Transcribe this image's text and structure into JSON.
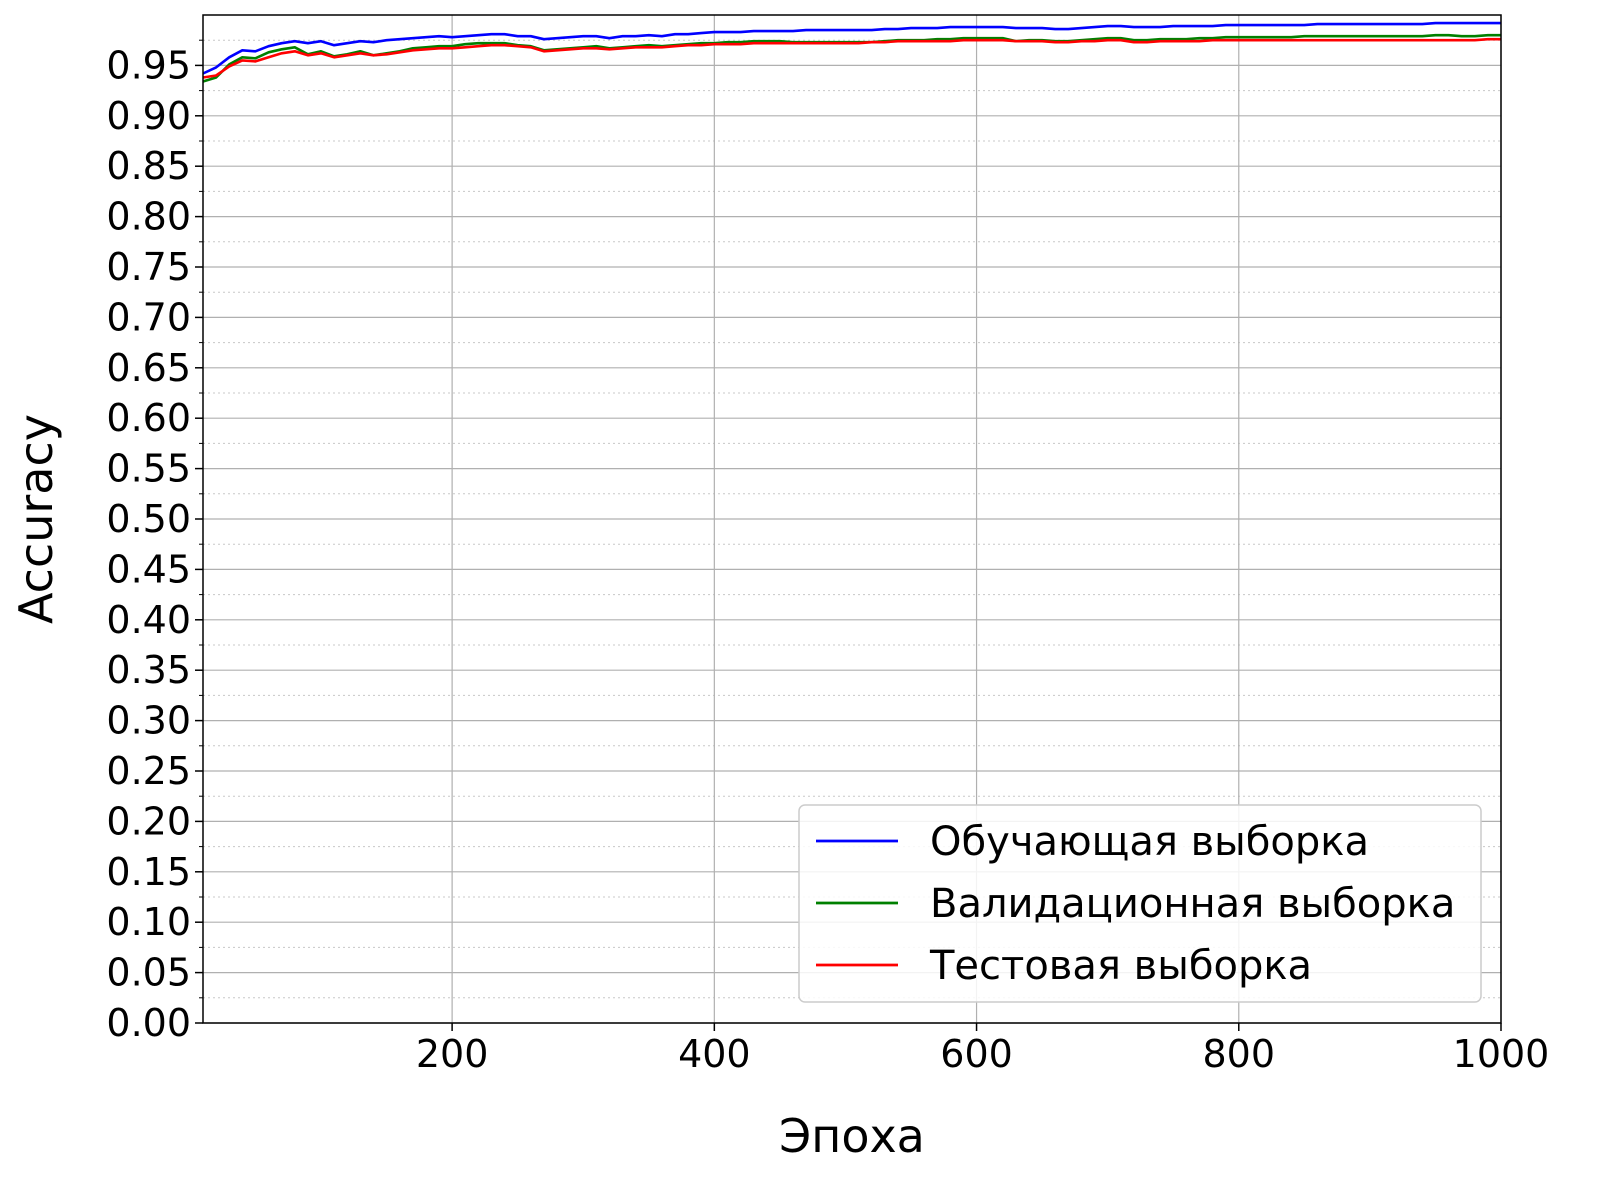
{
  "chart_data": {
    "type": "line",
    "title": "",
    "xlabel": "Эпоха",
    "ylabel": "Accuracy",
    "xlim": [
      10,
      1000
    ],
    "ylim": [
      0.0,
      1.0
    ],
    "x_ticks": [
      200,
      400,
      600,
      800,
      1000
    ],
    "y_ticks": [
      0.0,
      0.05,
      0.1,
      0.15,
      0.2,
      0.25,
      0.3,
      0.35,
      0.4,
      0.45,
      0.5,
      0.55,
      0.6,
      0.65,
      0.7,
      0.75,
      0.8,
      0.85,
      0.9,
      0.95
    ],
    "x_tick_labels": [
      "200",
      "400",
      "600",
      "800",
      "1000"
    ],
    "y_tick_labels": [
      "0.00",
      "0.05",
      "0.10",
      "0.15",
      "0.20",
      "0.25",
      "0.30",
      "0.35",
      "0.40",
      "0.45",
      "0.50",
      "0.55",
      "0.60",
      "0.65",
      "0.70",
      "0.75",
      "0.80",
      "0.85",
      "0.90",
      "0.95"
    ],
    "grid": "major solid, minor dotted",
    "legend_position": "lower-right",
    "x": [
      10,
      20,
      30,
      40,
      50,
      60,
      70,
      80,
      90,
      100,
      110,
      120,
      130,
      140,
      150,
      160,
      170,
      180,
      190,
      200,
      210,
      220,
      230,
      240,
      250,
      260,
      270,
      280,
      290,
      300,
      310,
      320,
      330,
      340,
      350,
      360,
      370,
      380,
      390,
      400,
      410,
      420,
      430,
      440,
      450,
      460,
      470,
      480,
      490,
      500,
      510,
      520,
      530,
      540,
      550,
      560,
      570,
      580,
      590,
      600,
      610,
      620,
      630,
      640,
      650,
      660,
      670,
      680,
      690,
      700,
      710,
      720,
      730,
      740,
      750,
      760,
      770,
      780,
      790,
      800,
      810,
      820,
      830,
      840,
      850,
      860,
      870,
      880,
      890,
      900,
      910,
      920,
      930,
      940,
      950,
      960,
      970,
      980,
      990,
      1000
    ],
    "series": [
      {
        "name": "Обучающая выборка",
        "color": "#0000ff",
        "values": [
          0.942,
          0.948,
          0.958,
          0.965,
          0.964,
          0.969,
          0.972,
          0.974,
          0.972,
          0.974,
          0.97,
          0.972,
          0.974,
          0.973,
          0.975,
          0.976,
          0.977,
          0.978,
          0.979,
          0.978,
          0.979,
          0.98,
          0.981,
          0.981,
          0.979,
          0.979,
          0.976,
          0.977,
          0.978,
          0.979,
          0.979,
          0.977,
          0.979,
          0.979,
          0.98,
          0.979,
          0.981,
          0.981,
          0.982,
          0.983,
          0.983,
          0.983,
          0.984,
          0.984,
          0.984,
          0.984,
          0.985,
          0.985,
          0.985,
          0.985,
          0.985,
          0.985,
          0.986,
          0.986,
          0.987,
          0.987,
          0.987,
          0.988,
          0.988,
          0.988,
          0.988,
          0.988,
          0.987,
          0.987,
          0.987,
          0.986,
          0.986,
          0.987,
          0.988,
          0.989,
          0.989,
          0.988,
          0.988,
          0.988,
          0.989,
          0.989,
          0.989,
          0.989,
          0.99,
          0.99,
          0.99,
          0.99,
          0.99,
          0.99,
          0.99,
          0.991,
          0.991,
          0.991,
          0.991,
          0.991,
          0.991,
          0.991,
          0.991,
          0.991,
          0.992,
          0.992,
          0.992,
          0.992,
          0.992,
          0.992
        ]
      },
      {
        "name": "Валидационная выборка",
        "color": "#008000",
        "values": [
          0.934,
          0.938,
          0.951,
          0.958,
          0.957,
          0.963,
          0.966,
          0.968,
          0.961,
          0.964,
          0.959,
          0.961,
          0.964,
          0.96,
          0.962,
          0.964,
          0.967,
          0.968,
          0.969,
          0.969,
          0.971,
          0.972,
          0.972,
          0.972,
          0.97,
          0.969,
          0.965,
          0.966,
          0.967,
          0.968,
          0.969,
          0.967,
          0.968,
          0.969,
          0.97,
          0.969,
          0.97,
          0.971,
          0.972,
          0.972,
          0.973,
          0.973,
          0.974,
          0.974,
          0.974,
          0.973,
          0.973,
          0.973,
          0.973,
          0.973,
          0.973,
          0.973,
          0.974,
          0.975,
          0.975,
          0.975,
          0.976,
          0.976,
          0.977,
          0.977,
          0.977,
          0.977,
          0.974,
          0.975,
          0.975,
          0.974,
          0.974,
          0.975,
          0.976,
          0.977,
          0.977,
          0.975,
          0.975,
          0.976,
          0.976,
          0.976,
          0.977,
          0.977,
          0.978,
          0.978,
          0.978,
          0.978,
          0.978,
          0.978,
          0.979,
          0.979,
          0.979,
          0.979,
          0.979,
          0.979,
          0.979,
          0.979,
          0.979,
          0.979,
          0.98,
          0.98,
          0.979,
          0.979,
          0.98,
          0.98
        ]
      },
      {
        "name": "Тестовая выборка",
        "color": "#ff0000",
        "values": [
          0.938,
          0.94,
          0.949,
          0.955,
          0.954,
          0.958,
          0.962,
          0.964,
          0.96,
          0.962,
          0.958,
          0.96,
          0.962,
          0.96,
          0.961,
          0.963,
          0.965,
          0.966,
          0.967,
          0.967,
          0.968,
          0.969,
          0.97,
          0.97,
          0.969,
          0.968,
          0.964,
          0.965,
          0.966,
          0.967,
          0.967,
          0.966,
          0.967,
          0.968,
          0.968,
          0.968,
          0.969,
          0.97,
          0.97,
          0.971,
          0.971,
          0.971,
          0.972,
          0.972,
          0.972,
          0.972,
          0.972,
          0.972,
          0.972,
          0.972,
          0.972,
          0.973,
          0.973,
          0.974,
          0.974,
          0.974,
          0.974,
          0.974,
          0.975,
          0.975,
          0.975,
          0.975,
          0.974,
          0.974,
          0.974,
          0.973,
          0.973,
          0.974,
          0.974,
          0.975,
          0.975,
          0.973,
          0.973,
          0.974,
          0.974,
          0.974,
          0.974,
          0.975,
          0.975,
          0.975,
          0.975,
          0.975,
          0.975,
          0.975,
          0.975,
          0.975,
          0.975,
          0.975,
          0.975,
          0.975,
          0.975,
          0.975,
          0.975,
          0.975,
          0.975,
          0.975,
          0.975,
          0.975,
          0.976,
          0.976
        ]
      }
    ]
  }
}
